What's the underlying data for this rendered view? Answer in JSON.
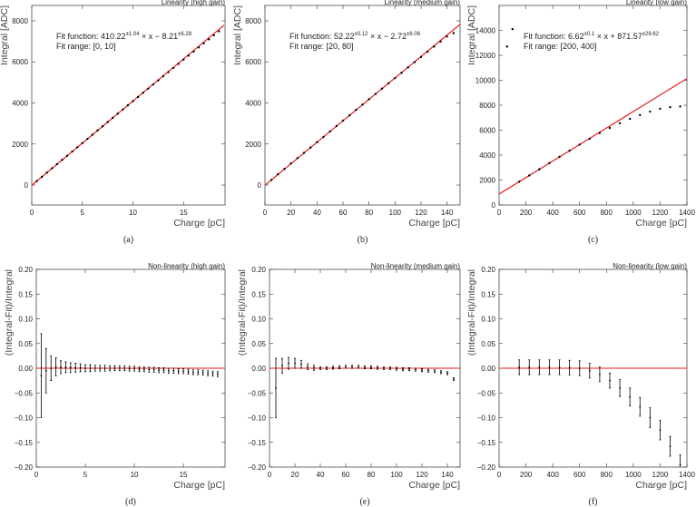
{
  "chart_data": [
    {
      "type": "scatter",
      "title": "Linearity (high gain)",
      "caption": "(a)",
      "xlabel": "Charge [pC]",
      "ylabel": "Integral [ADC]",
      "annotation": [
        "Fit function: 410.22",
        "±1.04",
        " × x − 8.21",
        "±6.28"
      ],
      "fit_range": "Fit range: [0, 10]",
      "x": [
        0.5,
        1,
        1.5,
        2,
        2.5,
        3,
        3.5,
        4,
        4.5,
        5,
        5.5,
        6,
        6.5,
        7,
        7.5,
        8,
        8.5,
        9,
        9.5,
        10,
        10.5,
        11,
        11.5,
        12,
        12.5,
        13,
        13.5,
        14,
        14.5,
        15,
        15.5,
        16,
        16.5,
        17,
        17.5,
        18,
        18.5
      ],
      "values": [
        194,
        400,
        607,
        815,
        1019,
        1225,
        1429,
        1634,
        1840,
        2043,
        2248,
        2453,
        2658,
        2863,
        3068,
        3274,
        3479,
        3684,
        3885,
        4090,
        4290,
        4495,
        4695,
        4900,
        5099,
        5303,
        5502,
        5706,
        5904,
        6108,
        6306,
        6503,
        6706,
        6903,
        7099,
        7295,
        7490
      ],
      "color": "#000000",
      "fit": {
        "x": [
          0,
          19
        ],
        "values": [
          -8.21,
          7785.97
        ],
        "color": "#e8191b"
      },
      "xlim": [
        0,
        19.1
      ],
      "ylim": [
        -970,
        8750
      ],
      "xticks": [
        0,
        5,
        10,
        15
      ],
      "yticks": [
        0,
        2000,
        4000,
        6000,
        8000
      ]
    },
    {
      "type": "scatter",
      "title": "Linearity (medium gain)",
      "caption": "(b)",
      "xlabel": "Charge [pC]",
      "ylabel": "Integral [ADC]",
      "annotation": [
        "Fit function: 52.22",
        "±0.12",
        " × x − 2.72",
        "±6.06"
      ],
      "fit_range": "Fit range: [20, 80]",
      "x": [
        5,
        10,
        15,
        20,
        25,
        30,
        35,
        40,
        45,
        50,
        55,
        60,
        65,
        70,
        75,
        80,
        85,
        90,
        95,
        100,
        105,
        110,
        115,
        120,
        125,
        130,
        135,
        140,
        145
      ],
      "values": [
        248,
        522,
        788,
        1052,
        1313,
        1569,
        1827,
        2086,
        2347,
        2611,
        2875,
        3140,
        3402,
        3664,
        3922,
        4183,
        4440,
        4697,
        4958,
        5214,
        5469,
        5730,
        5985,
        6239,
        6492,
        6745,
        6991,
        7235,
        7403
      ],
      "color": "#000000",
      "fit": {
        "x": [
          0,
          150
        ],
        "values": [
          -2.72,
          7830.28
        ],
        "color": "#e8191b"
      },
      "xlim": [
        0,
        150
      ],
      "ylim": [
        -970,
        8750
      ],
      "xticks": [
        0,
        20,
        40,
        60,
        80,
        100,
        120,
        140
      ],
      "yticks": [
        0,
        2000,
        4000,
        6000,
        8000
      ]
    },
    {
      "type": "scatter",
      "title": "Linearity (low gain)",
      "caption": "(c)",
      "xlabel": "Charge [pC]",
      "ylabel": "Integral [ADC]",
      "annotation": [
        "Fit function: 6.62",
        "±0.1",
        " × x + 871.57",
        "±29.62"
      ],
      "fit_range": "Fit range: [200, 400]",
      "x": [
        60,
        100,
        150,
        225,
        300,
        375,
        450,
        525,
        600,
        675,
        750,
        825,
        900,
        975,
        1050,
        1125,
        1200,
        1275,
        1350
      ],
      "values": [
        12700,
        14100,
        1868,
        2366,
        2863,
        3361,
        3858,
        4351,
        4844,
        5313,
        5767,
        6175,
        6556,
        6901,
        7212,
        7487,
        7714,
        7841,
        7896
      ],
      "color": "#000000",
      "fit": {
        "x": [
          0,
          1400
        ],
        "values": [
          871.57,
          10139.57
        ],
        "color": "#e8191b"
      },
      "xlim": [
        0,
        1400
      ],
      "ylim": [
        0,
        16000
      ],
      "xticks": [
        0,
        200,
        400,
        600,
        800,
        1000,
        1200,
        1400
      ],
      "yticks": [
        0,
        2000,
        4000,
        6000,
        8000,
        10000,
        12000,
        14000
      ]
    },
    {
      "type": "errorbar",
      "title": "Non-linearity (high gain)",
      "caption": "(d)",
      "xlabel": "Charge [pC]",
      "ylabel": "(Integral-Fit)/Integral",
      "x": [
        0.5,
        1,
        1.5,
        2,
        2.5,
        3,
        3.5,
        4,
        4.5,
        5,
        5.5,
        6,
        6.5,
        7,
        7.5,
        8,
        8.5,
        9,
        9.5,
        10,
        10.5,
        11,
        11.5,
        12,
        12.5,
        13,
        13.5,
        14,
        14.5,
        15,
        15.5,
        16,
        16.5,
        17,
        17.5,
        18,
        18.5
      ],
      "values": [
        -0.015,
        -0.005,
        0,
        0.003,
        0.002,
        0.002,
        0.001,
        0.001,
        0.001,
        0,
        0,
        0,
        0,
        0,
        0,
        0,
        0,
        0,
        -0.001,
        -0.001,
        -0.002,
        -0.002,
        -0.003,
        -0.003,
        -0.004,
        -0.004,
        -0.005,
        -0.005,
        -0.006,
        -0.006,
        -0.007,
        -0.008,
        -0.008,
        -0.009,
        -0.01,
        -0.011,
        -0.012
      ],
      "errors": [
        0.085,
        0.045,
        0.025,
        0.018,
        0.013,
        0.011,
        0.01,
        0.009,
        0.008,
        0.007,
        0.007,
        0.006,
        0.006,
        0.006,
        0.005,
        0.005,
        0.005,
        0.005,
        0.005,
        0.005,
        0.005,
        0.005,
        0.005,
        0.005,
        0.005,
        0.005,
        0.005,
        0.005,
        0.005,
        0.005,
        0.005,
        0.005,
        0.005,
        0.005,
        0.005,
        0.005,
        0.005
      ],
      "color": "#000000",
      "reference_line": 0,
      "reference_color": "#e8191b",
      "xlim": [
        0,
        19.25
      ],
      "ylim": [
        -0.2,
        0.2
      ],
      "xticks": [
        0,
        5,
        10,
        15
      ],
      "yticks": [
        {
          "value": -0.2,
          "label": "−0.20"
        },
        {
          "value": -0.15,
          "label": "−0.15"
        },
        {
          "value": -0.1,
          "label": "−0.10"
        },
        {
          "value": -0.05,
          "label": "−0.05"
        },
        {
          "value": 0,
          "label": "0.00"
        },
        0.05,
        {
          "value": 0.1,
          "label": "0.10"
        },
        0.15,
        {
          "value": 0.2,
          "label": "0.20"
        }
      ]
    },
    {
      "type": "errorbar",
      "title": "Non-linearity (medium gain)",
      "caption": "(e)",
      "xlabel": "Charge [pC]",
      "ylabel": "(Integral-Fit)/Integral",
      "x": [
        5,
        10,
        15,
        20,
        25,
        30,
        35,
        40,
        45,
        50,
        55,
        60,
        65,
        70,
        75,
        80,
        85,
        90,
        95,
        100,
        105,
        110,
        115,
        120,
        125,
        130,
        135,
        140,
        145
      ],
      "values": [
        -0.04,
        0.005,
        0.01,
        0.01,
        0.008,
        0.003,
        0.001,
        0,
        0,
        0.001,
        0.002,
        0.003,
        0.003,
        0.003,
        0.002,
        0.002,
        0.001,
        0,
        0,
        -0.001,
        -0.002,
        -0.002,
        -0.003,
        -0.004,
        -0.005,
        -0.006,
        -0.008,
        -0.01,
        -0.022
      ],
      "errors": [
        0.06,
        0.015,
        0.012,
        0.01,
        0.008,
        0.006,
        0.005,
        0.003,
        0.003,
        0.003,
        0.003,
        0.003,
        0.003,
        0.003,
        0.003,
        0.003,
        0.003,
        0.003,
        0.003,
        0.003,
        0.003,
        0.003,
        0.003,
        0.003,
        0.003,
        0.003,
        0.003,
        0.003,
        0.003
      ],
      "color": "#000000",
      "reference_line": 0,
      "reference_color": "#e8191b",
      "xlim": [
        0,
        150
      ],
      "ylim": [
        -0.2,
        0.2
      ],
      "xticks": [
        0,
        20,
        40,
        60,
        80,
        100,
        120,
        140
      ],
      "yticks": [
        {
          "value": -0.2,
          "label": "−0.20"
        },
        {
          "value": -0.15,
          "label": "−0.15"
        },
        {
          "value": -0.1,
          "label": "−0.10"
        },
        {
          "value": -0.05,
          "label": "−0.05"
        },
        {
          "value": 0,
          "label": "0.00"
        },
        0.05,
        {
          "value": 0.1,
          "label": "0.10"
        },
        0.15,
        {
          "value": 0.2,
          "label": "0.20"
        }
      ]
    },
    {
      "type": "errorbar",
      "title": "Non-linearity (low gain)",
      "caption": "(f)",
      "xlabel": "Charge [pC]",
      "ylabel": "(Integral-Fit)/Integral",
      "x": [
        150,
        225,
        300,
        375,
        450,
        525,
        600,
        675,
        750,
        825,
        900,
        975,
        1050,
        1125,
        1200,
        1275,
        1350
      ],
      "values": [
        0.002,
        0.002,
        0.002,
        0.002,
        0.002,
        0.001,
        0,
        -0.005,
        -0.012,
        -0.025,
        -0.04,
        -0.058,
        -0.078,
        -0.1,
        -0.125,
        -0.158,
        -0.195
      ],
      "errors": [
        0.015,
        0.015,
        0.015,
        0.015,
        0.015,
        0.015,
        0.015,
        0.015,
        0.015,
        0.015,
        0.017,
        0.018,
        0.019,
        0.02,
        0.02,
        0.02,
        0.02
      ],
      "color": "#000000",
      "reference_line": 0,
      "reference_color": "#e8191b",
      "xlim": [
        0,
        1400
      ],
      "ylim": [
        -0.2,
        0.2
      ],
      "xticks": [
        0,
        200,
        400,
        600,
        800,
        1000,
        1200,
        1400
      ],
      "yticks": [
        {
          "value": -0.2,
          "label": "−0.20"
        },
        {
          "value": -0.15,
          "label": "−0.15"
        },
        {
          "value": -0.1,
          "label": "−0.10"
        },
        {
          "value": -0.05,
          "label": "−0.05"
        },
        {
          "value": 0,
          "label": "0.00"
        },
        0.05,
        {
          "value": 0.1,
          "label": "0.10"
        },
        0.15,
        {
          "value": 0.2,
          "label": "0.20"
        }
      ]
    }
  ]
}
